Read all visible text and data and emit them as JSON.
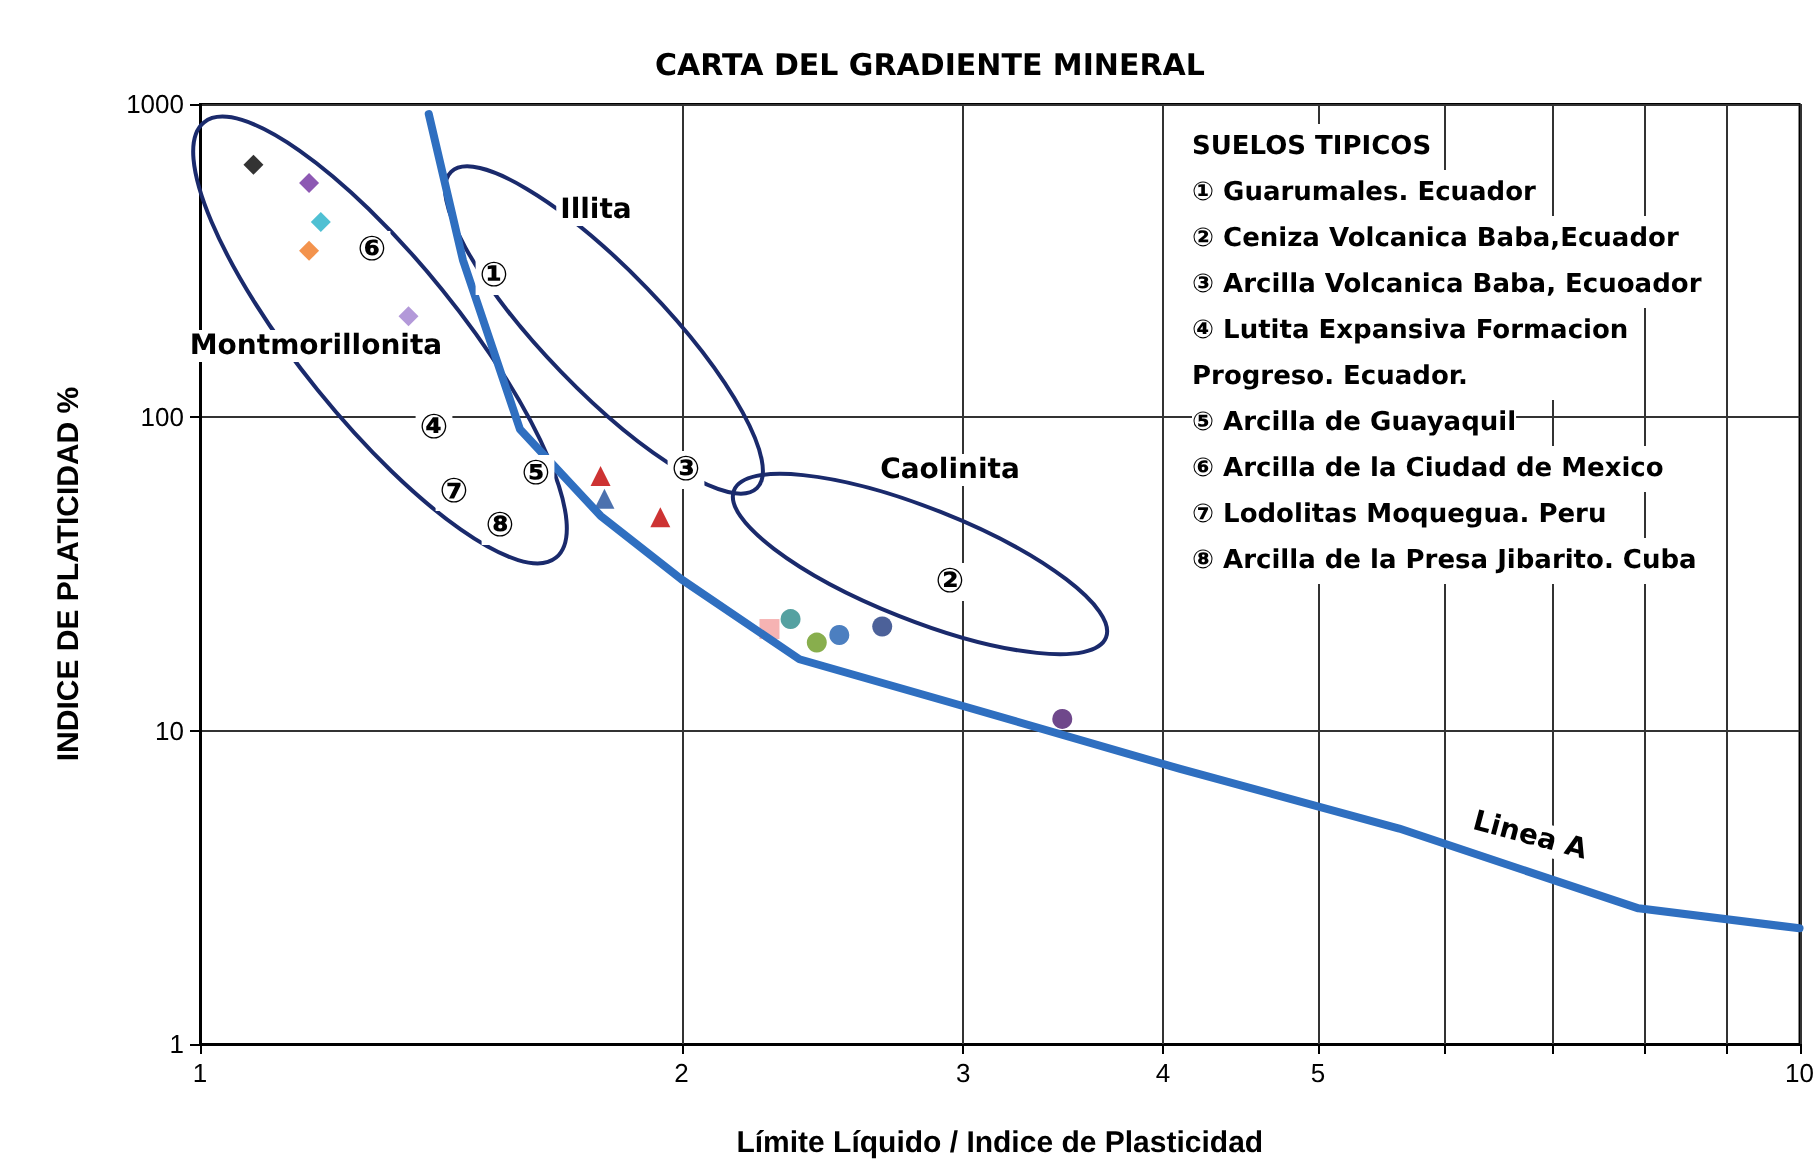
{
  "chart_data": {
    "type": "scatter",
    "title": "CARTA DEL GRADIENTE MINERAL",
    "xlabel": "Límite Líquido / Indice de Plasticidad",
    "ylabel": "INDICE DE PLATICIDAD %",
    "log": "xy",
    "xlim": [
      1,
      10
    ],
    "ylim": [
      1,
      1000
    ],
    "xticks": [
      1,
      2,
      3,
      4,
      5,
      {
        "value": 6,
        "label": null
      },
      {
        "value": 7,
        "label": null
      },
      {
        "value": 8,
        "label": null
      },
      {
        "value": 9,
        "label": null
      },
      10
    ],
    "yticks": [
      1,
      10,
      100,
      1000
    ],
    "grid": true,
    "series": [
      {
        "marker": "diamond",
        "x": [
          1.08,
          1.17,
          1.19,
          1.17,
          1.35
        ],
        "values": [
          640,
          560,
          420,
          340,
          210
        ],
        "colors": [
          "#000000",
          "#7030a0",
          "#23b0c8",
          "#f07820",
          "#a080d0"
        ]
      },
      {
        "marker": "triangle",
        "x": [
          1.78,
          1.79,
          1.94
        ],
        "values": [
          65,
          55,
          48
        ],
        "colors": [
          "#c00000",
          "#1f4e9a",
          "#c00000"
        ]
      },
      {
        "marker": "circle",
        "x": [
          2.34,
          2.43,
          2.51,
          2.67,
          3.46
        ],
        "values": [
          22.7,
          19.1,
          20.2,
          21.5,
          10.9
        ],
        "colors": [
          "#2a8a8a",
          "#6a9a20",
          "#1f5fb0",
          "#1f3a80",
          "#4b1a6e"
        ]
      },
      {
        "marker": "square",
        "x": [
          2.27
        ],
        "values": [
          21.1
        ],
        "colors": [
          "#f4a0a0"
        ]
      },
      {
        "type": "line",
        "marker": "none",
        "color": "#2f6fc0",
        "x": [
          1.39,
          1.46,
          1.585,
          1.78,
          2,
          2.37,
          2.98,
          4.1,
          5.62,
          7.93,
          10
        ],
        "values": [
          929,
          318,
          91.6,
          48.5,
          30.4,
          16.9,
          12.1,
          7.55,
          4.87,
          2.71,
          2.34
        ]
      }
    ],
    "annotations": [
      "Illita",
      "Caolinita",
      "Montmorillonita",
      "Linea A",
      "①",
      "②",
      "③",
      "④",
      "⑤",
      "⑥",
      "⑦",
      "⑧",
      "SUELOS TIPICOS",
      "① Guarumales. Ecuador",
      "② Ceniza Volcanica Baba,Ecuador",
      "③ Arcilla Volcanica Baba, Ecuoador",
      "④ Lutita Expansiva Formacion\nProgreso. Ecuador.",
      "⑤ Arcilla de Guayaquil",
      "⑥ Arcilla de la Ciudad de Mexico",
      "⑦ Lodolitas Moquegua. Peru",
      "⑧ Arcilla de la Presa Jibarito. Cuba"
    ]
  }
}
